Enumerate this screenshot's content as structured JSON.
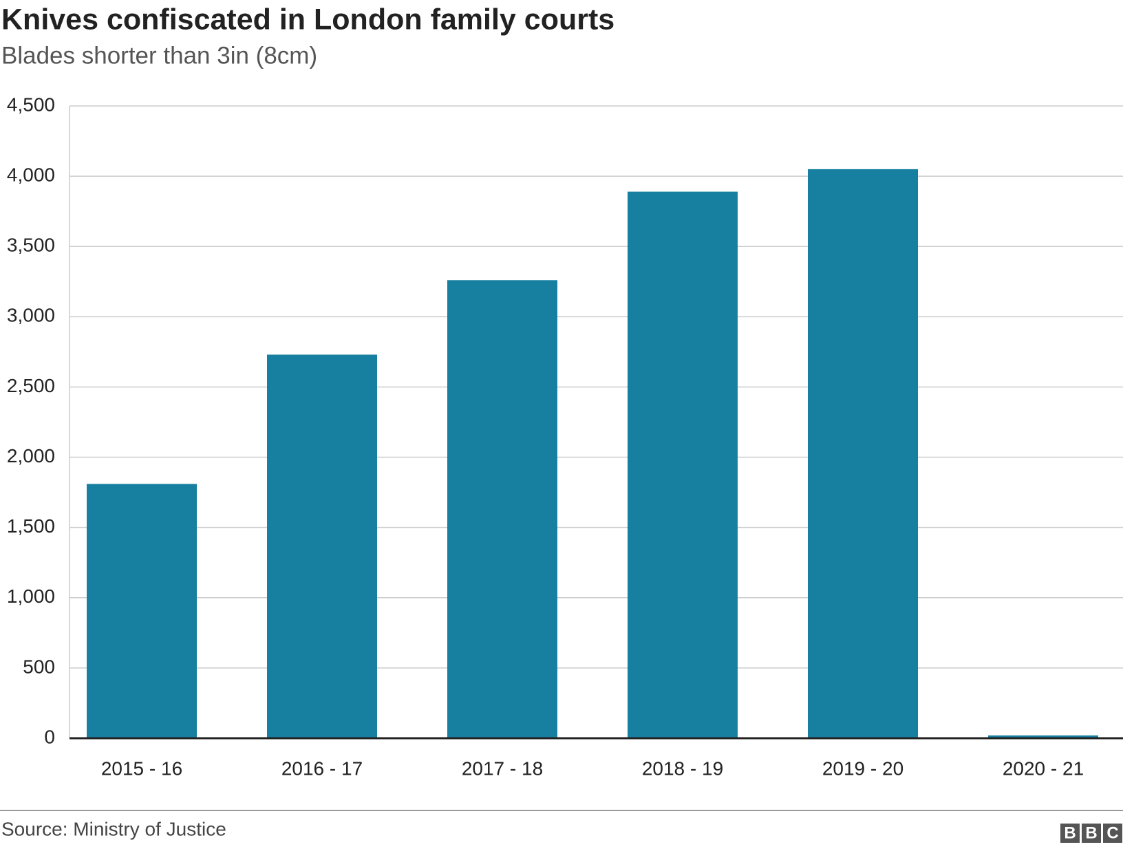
{
  "chart_data": {
    "type": "bar",
    "title": "Knives confiscated in London family courts",
    "subtitle": "Blades shorter than 3in (8cm)",
    "categories": [
      "2015 - 16",
      "2016 - 17",
      "2017 - 18",
      "2018 - 19",
      "2019 - 20",
      "2020 - 21"
    ],
    "values": [
      1810,
      2730,
      3260,
      3890,
      4050,
      20
    ],
    "color": "#1780a1",
    "ylim": [
      0,
      4500
    ],
    "yticks": [
      0,
      500,
      {
        "value": 1000,
        "label": "1,000"
      },
      {
        "value": 1500,
        "label": "1,500"
      },
      {
        "value": 2000,
        "label": "2,000"
      },
      {
        "value": 2500,
        "label": "2,500"
      },
      {
        "value": 3000,
        "label": "3,000"
      },
      {
        "value": 3500,
        "label": "3,500"
      },
      {
        "value": 4000,
        "label": "4,000"
      },
      {
        "value": 4500,
        "label": "4,500"
      }
    ],
    "grid": true,
    "source": "Source: Ministry of Justice",
    "logo": [
      "B",
      "B",
      "C"
    ]
  }
}
